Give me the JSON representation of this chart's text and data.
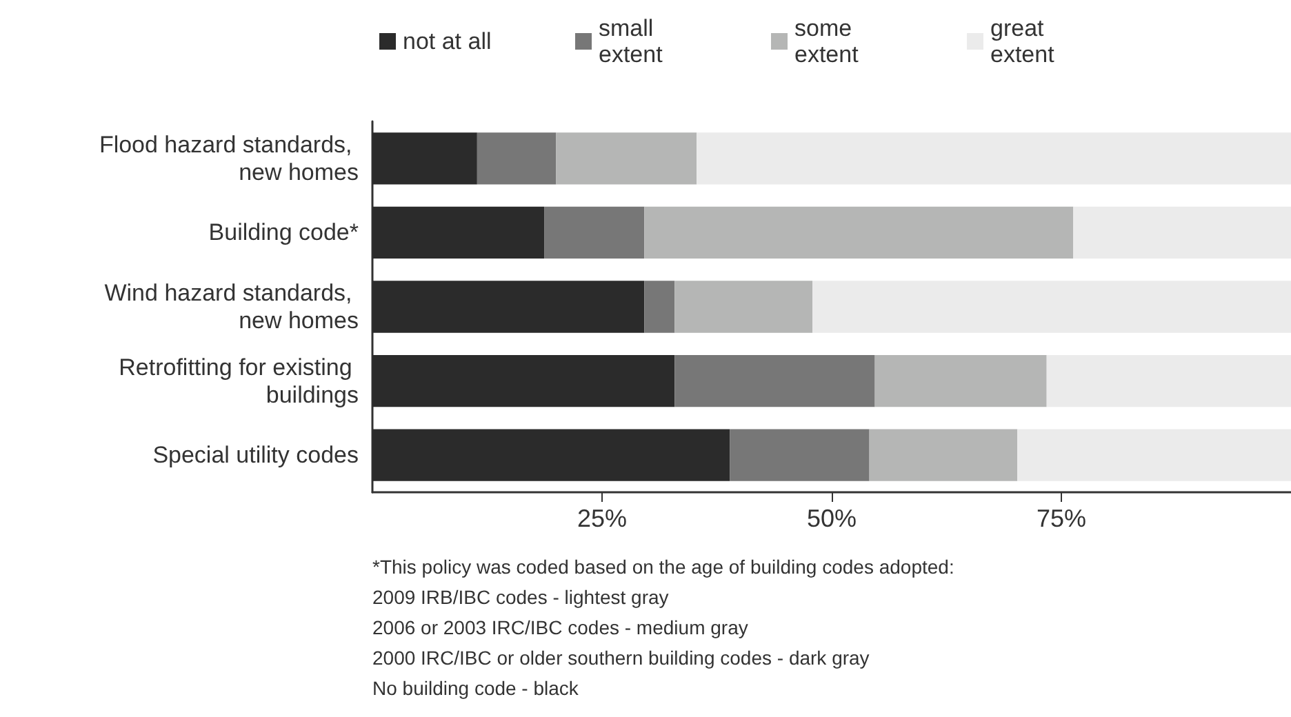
{
  "chart_data": {
    "type": "bar",
    "orientation": "horizontal",
    "stacked": true,
    "categories": [
      "Flood hazard standards, new homes",
      "Building code*",
      "Wind hazard standards, new homes",
      "Retrofitting for existing buildings",
      "Special utility codes"
    ],
    "series": [
      {
        "name": "not at all",
        "color": "#2b2b2b",
        "values": [
          11.4,
          18.7,
          29.6,
          32.9,
          38.9
        ]
      },
      {
        "name": "small extent",
        "color": "#777777",
        "values": [
          8.6,
          10.9,
          3.3,
          21.8,
          15.2
        ]
      },
      {
        "name": "some extent",
        "color": "#b5b6b5",
        "values": [
          15.3,
          46.7,
          15.0,
          18.7,
          16.1
        ]
      },
      {
        "name": "great extent",
        "color": "#ebebeb",
        "values": [
          64.7,
          23.7,
          52.1,
          26.6,
          29.8
        ]
      }
    ],
    "xlim": [
      0,
      100
    ],
    "xticks": [
      {
        "value": 25,
        "label": "25%"
      },
      {
        "value": 50,
        "label": "50%"
      },
      {
        "value": 75,
        "label": "75%"
      }
    ],
    "grid": false,
    "legend": "top",
    "annotations": [
      "*This policy was coded based on the age of building codes adopted:",
      "2009 IRB/IBC codes - lightest gray",
      "2006 or 2003 IRC/IBC codes - medium gray",
      "2000 IRC/IBC or older southern building codes - dark gray",
      "No building code - black"
    ]
  }
}
